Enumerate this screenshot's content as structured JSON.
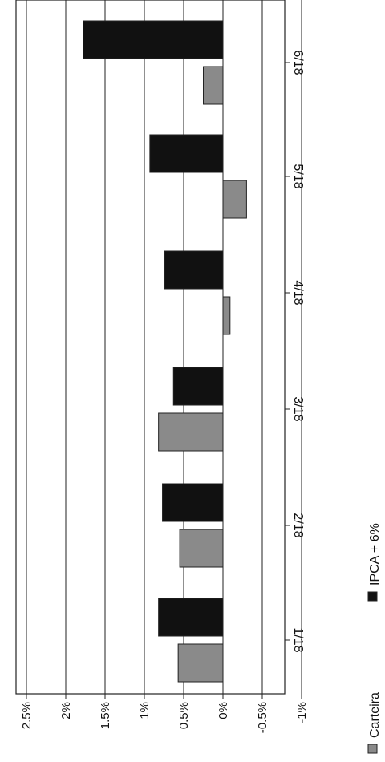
{
  "chart_data": {
    "type": "bar",
    "orientation": "rotated-90",
    "categories": [
      "1/18",
      "2/18",
      "3/18",
      "4/18",
      "5/18",
      "6/18"
    ],
    "series": [
      {
        "name": "Carteira",
        "color": "#8a8a8a",
        "values": [
          0.57,
          0.55,
          0.82,
          -0.09,
          -0.3,
          0.25
        ]
      },
      {
        "name": "IPCA + 6%",
        "color": "#111111",
        "values": [
          0.82,
          0.77,
          0.63,
          0.74,
          0.93,
          1.78
        ]
      }
    ],
    "ticks": [
      {
        "value": 2.5,
        "label": "2.5%"
      },
      {
        "value": 2.0,
        "label": "2%"
      },
      {
        "value": 1.5,
        "label": "1.5%"
      },
      {
        "value": 1.0,
        "label": "1%"
      },
      {
        "value": 0.5,
        "label": "0.5%"
      },
      {
        "value": 0.0,
        "label": "0%"
      },
      {
        "value": -0.5,
        "label": "-0.5%"
      },
      {
        "value": -1.0,
        "label": "-1%"
      }
    ],
    "ylim": [
      -1,
      2.5
    ],
    "grid": true,
    "legend": "bottom"
  }
}
